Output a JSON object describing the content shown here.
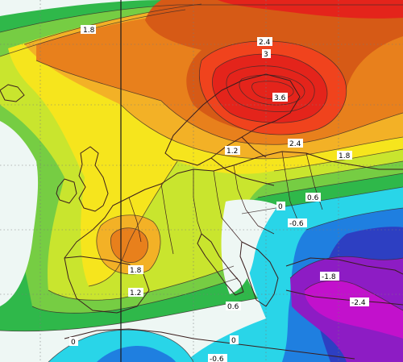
{
  "map": {
    "type": "temperature anomaly contour map",
    "region": "Europe",
    "colors": {
      "strong_red": "#e4241b",
      "red": "#f0431d",
      "dark_orange": "#d65a16",
      "orange": "#e8801c",
      "yellow_orange": "#f3b126",
      "yellow": "#f6e51d",
      "yellow_green": "#c9e52e",
      "green": "#76cd43",
      "bright_green": "#2fb84a",
      "pale": "#eef7f4",
      "cyan": "#29d5e8",
      "blue": "#1f7fe0",
      "deep_blue": "#2d3fc2",
      "purple": "#8d1cc4",
      "magenta": "#c211cc",
      "land_border": "#3a1d1d",
      "grid": "#7a7a7a",
      "meridian": "#1a1a1a"
    },
    "contour_labels": [
      {
        "id": "l-1-8-top",
        "text": "1.8"
      },
      {
        "id": "l-2-4-top",
        "text": "2.4"
      },
      {
        "id": "l-3",
        "text": "3"
      },
      {
        "id": "l-3-6",
        "text": "3.6"
      },
      {
        "id": "l-1-2-mid",
        "text": "1.2"
      },
      {
        "id": "l-2-4-east",
        "text": "2.4"
      },
      {
        "id": "l-1-8-east",
        "text": "1.8"
      },
      {
        "id": "l-0-6-east",
        "text": "0.6"
      },
      {
        "id": "l-0-east",
        "text": "0"
      },
      {
        "id": "l-neg-0-6",
        "text": "-0.6"
      },
      {
        "id": "l-1-8-sw",
        "text": "1.8"
      },
      {
        "id": "l-1-2-sw",
        "text": "1.2"
      },
      {
        "id": "l-0-6-south",
        "text": "0.6"
      },
      {
        "id": "l-neg-1-8",
        "text": "-1.8"
      },
      {
        "id": "l-neg-2-4",
        "text": "-2.4"
      },
      {
        "id": "l-0-sw",
        "text": "0"
      },
      {
        "id": "l-0-s",
        "text": "0"
      },
      {
        "id": "l-neg-0-6-bottom",
        "text": "-0.6"
      }
    ]
  }
}
